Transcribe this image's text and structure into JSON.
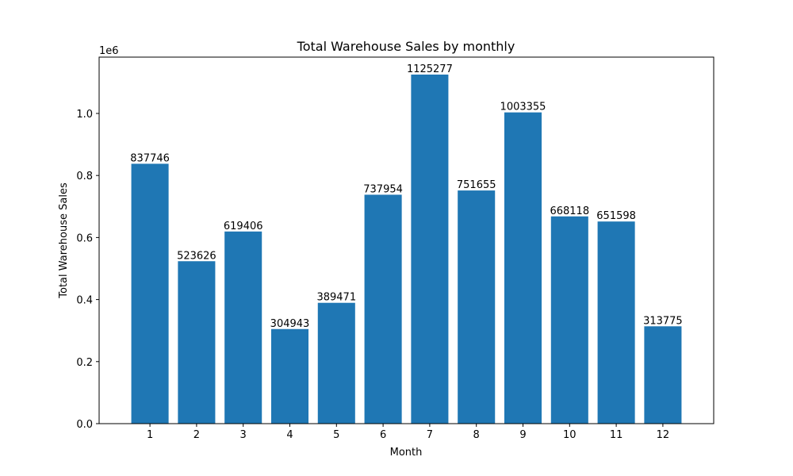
{
  "chart_data": {
    "type": "bar",
    "title": "Total Warehouse Sales by monthly",
    "xlabel": "Month",
    "ylabel": "Total Warehouse Sales",
    "y_offset_label": "1e6",
    "categories": [
      "1",
      "2",
      "3",
      "4",
      "5",
      "6",
      "7",
      "8",
      "9",
      "10",
      "11",
      "12"
    ],
    "values": [
      837746,
      523626,
      619406,
      304943,
      389471,
      737954,
      1125277,
      751655,
      1003355,
      668118,
      651598,
      313775
    ],
    "ylim": [
      0,
      1181540
    ],
    "y_ticks": [
      0,
      200000,
      400000,
      600000,
      800000,
      1000000
    ],
    "y_tick_labels": [
      "0.0",
      "0.2",
      "0.4",
      "0.6",
      "0.8",
      "1.0"
    ],
    "grid": false,
    "bar_color": "#1f77b4"
  }
}
